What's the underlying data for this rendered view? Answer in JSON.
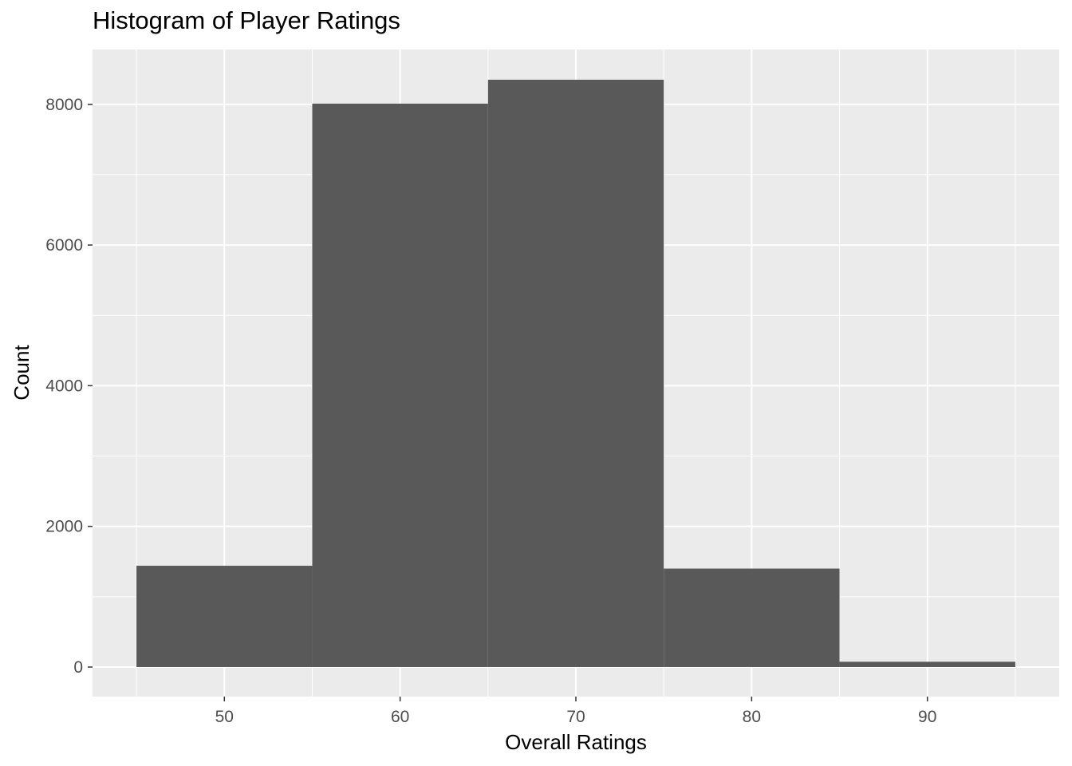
{
  "chart_data": {
    "type": "bar",
    "title": "Histogram of Player Ratings",
    "xlabel": "Overall Ratings",
    "ylabel": "Count",
    "bins": [
      {
        "x0": 45,
        "x1": 55,
        "count": 1440
      },
      {
        "x0": 55,
        "x1": 65,
        "count": 8010
      },
      {
        "x0": 65,
        "x1": 75,
        "count": 8350
      },
      {
        "x0": 75,
        "x1": 85,
        "count": 1400
      },
      {
        "x0": 85,
        "x1": 95,
        "count": 75
      }
    ],
    "xlim": [
      42.5,
      97.5
    ],
    "ylim": [
      -420,
      8780
    ],
    "x_ticks": [
      50,
      60,
      70,
      80,
      90
    ],
    "y_ticks": [
      0,
      2000,
      4000,
      6000,
      8000
    ],
    "x_tick_labels": [
      "50",
      "60",
      "70",
      "80",
      "90"
    ],
    "y_tick_labels": [
      "0",
      "2000",
      "4000",
      "6000",
      "8000"
    ],
    "grid": true,
    "colors": {
      "panel_background": "#ebebeb",
      "grid_major": "#ffffff",
      "bar_fill": "#595959",
      "tick_text": "#4d4d4d"
    }
  }
}
